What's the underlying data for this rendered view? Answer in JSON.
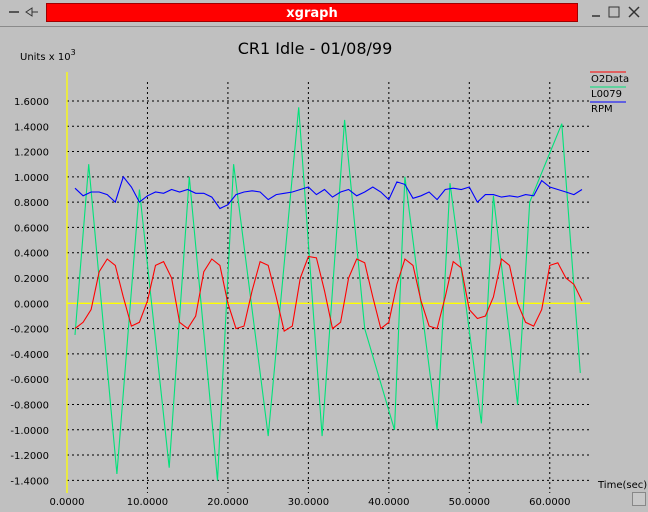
{
  "window": {
    "title": "xgraph",
    "minimize_label": "_",
    "maximize_label": "□",
    "close_label": "✕",
    "menu_icon": "dash-icon",
    "pin_icon": "pin-icon"
  },
  "chart_data": {
    "type": "line",
    "title": "CR1 Idle - 01/08/99",
    "ylabel": "Units x 10",
    "ylabel_exp": "3",
    "xlabel": "Time(sec)",
    "xlim": [
      0,
      65
    ],
    "ylim": [
      -1.5,
      1.75
    ],
    "grid": true,
    "legend_placement": "top-right",
    "x_ticks": [
      "0.0000",
      "10.0000",
      "20.0000",
      "30.0000",
      "40.0000",
      "50.0000",
      "60.0000"
    ],
    "x_tick_values": [
      0,
      10,
      20,
      30,
      40,
      50,
      60
    ],
    "y_ticks": [
      "-1.4000",
      "-1.2000",
      "-1.0000",
      "-0.8000",
      "-0.6000",
      "-0.4000",
      "-0.2000",
      "0.0000",
      "0.2000",
      "0.4000",
      "0.6000",
      "0.8000",
      "1.0000",
      "1.2000",
      "1.4000",
      "1.6000"
    ],
    "y_tick_values": [
      -1.4,
      -1.2,
      -1.0,
      -0.8,
      -0.6,
      -0.4,
      -0.2,
      0.0,
      0.2,
      0.4,
      0.6,
      0.8,
      1.0,
      1.2,
      1.4,
      1.6
    ],
    "colors": {
      "background": "#c0c0c0",
      "grid": "#000000",
      "axis_zero": "#ffff00",
      "text": "#000000"
    },
    "series": [
      {
        "name": "O2Data",
        "color": "#ff0000",
        "x": [
          1.0,
          2.0,
          3.0,
          4.0,
          5.0,
          6.0,
          7.0,
          8.0,
          9.0,
          10.0,
          11.0,
          12.0,
          13.0,
          14.0,
          15.0,
          16.0,
          17.0,
          18.0,
          19.0,
          20.0,
          21.0,
          22.0,
          23.0,
          24.0,
          25.0,
          26.0,
          27.0,
          28.0,
          29.0,
          30.0,
          31.0,
          32.0,
          33.0,
          34.0,
          35.0,
          36.0,
          37.0,
          38.0,
          39.0,
          40.0,
          41.0,
          42.0,
          43.0,
          44.0,
          45.0,
          46.0,
          47.0,
          48.0,
          49.0,
          50.0,
          51.0,
          52.0,
          53.0,
          54.0,
          55.0,
          56.0,
          57.0,
          58.0,
          59.0,
          60.0,
          61.0,
          62.0,
          63.0,
          64.0
        ],
        "values": [
          -0.2,
          -0.15,
          -0.05,
          0.25,
          0.35,
          0.3,
          0.05,
          -0.18,
          -0.15,
          0.02,
          0.3,
          0.33,
          0.2,
          -0.15,
          -0.2,
          -0.1,
          0.25,
          0.35,
          0.3,
          0.0,
          -0.2,
          -0.18,
          0.1,
          0.33,
          0.3,
          0.05,
          -0.22,
          -0.18,
          0.2,
          0.37,
          0.36,
          0.1,
          -0.2,
          -0.15,
          0.2,
          0.35,
          0.32,
          0.05,
          -0.2,
          -0.15,
          0.15,
          0.35,
          0.3,
          0.02,
          -0.18,
          -0.2,
          0.05,
          0.33,
          0.28,
          -0.05,
          -0.12,
          -0.1,
          0.05,
          0.35,
          0.3,
          0.0,
          -0.15,
          -0.18,
          -0.05,
          0.3,
          0.32,
          0.2,
          0.15,
          0.02
        ]
      },
      {
        "name": "L0079",
        "color": "#00e27a",
        "x": [
          1.0,
          2.7,
          6.2,
          9.0,
          12.7,
          15.2,
          18.7,
          20.7,
          25.0,
          28.8,
          31.7,
          34.5,
          37.0,
          40.7,
          42.0,
          46.0,
          47.6,
          51.5,
          53.0,
          56.0,
          57.5,
          61.5,
          63.8
        ],
        "values": [
          -0.25,
          1.1,
          -1.35,
          0.9,
          -1.3,
          1.0,
          -1.4,
          1.1,
          -1.05,
          1.55,
          -1.05,
          1.45,
          -0.2,
          -1.0,
          1.0,
          -1.0,
          0.95,
          -0.95,
          0.85,
          -0.8,
          0.8,
          1.42,
          -0.55
        ]
      },
      {
        "name": "RPM",
        "color": "#0000ff",
        "x": [
          1.0,
          2.0,
          3.0,
          4.0,
          5.0,
          6.0,
          7.0,
          8.0,
          9.0,
          10.0,
          11.0,
          12.0,
          13.0,
          14.0,
          15.0,
          16.0,
          17.0,
          18.0,
          19.0,
          20.0,
          21.0,
          22.0,
          23.0,
          24.0,
          25.0,
          26.0,
          27.0,
          28.0,
          29.0,
          30.0,
          31.0,
          32.0,
          33.0,
          34.0,
          35.0,
          36.0,
          37.0,
          38.0,
          39.0,
          40.0,
          41.0,
          42.0,
          43.0,
          44.0,
          45.0,
          46.0,
          47.0,
          48.0,
          49.0,
          50.0,
          51.0,
          52.0,
          53.0,
          54.0,
          55.0,
          56.0,
          57.0,
          58.0,
          59.0,
          60.0,
          61.0,
          62.0,
          63.0,
          64.0
        ],
        "values": [
          0.91,
          0.85,
          0.88,
          0.88,
          0.86,
          0.8,
          1.0,
          0.92,
          0.8,
          0.85,
          0.88,
          0.87,
          0.9,
          0.88,
          0.9,
          0.87,
          0.87,
          0.84,
          0.75,
          0.78,
          0.86,
          0.88,
          0.89,
          0.88,
          0.82,
          0.86,
          0.87,
          0.88,
          0.9,
          0.92,
          0.86,
          0.9,
          0.84,
          0.88,
          0.9,
          0.85,
          0.88,
          0.92,
          0.88,
          0.82,
          0.96,
          0.94,
          0.83,
          0.85,
          0.88,
          0.82,
          0.9,
          0.91,
          0.9,
          0.92,
          0.8,
          0.86,
          0.86,
          0.84,
          0.85,
          0.84,
          0.86,
          0.85,
          0.97,
          0.92,
          0.9,
          0.88,
          0.86,
          0.9
        ]
      }
    ]
  }
}
